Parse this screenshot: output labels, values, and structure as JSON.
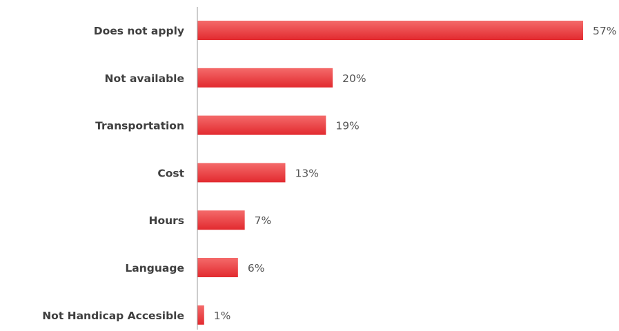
{
  "chart_data": {
    "type": "bar",
    "orientation": "horizontal",
    "categories": [
      "Does not apply",
      "Not available",
      "Transportation",
      "Cost",
      "Hours",
      "Language",
      "Not Handicap Accesible"
    ],
    "values": [
      57,
      20,
      19,
      13,
      7,
      6,
      1
    ],
    "value_labels": [
      "57%",
      "20%",
      "19%",
      "13%",
      "7%",
      "6%",
      "1%"
    ],
    "unit": "%",
    "xlim": [
      0,
      57
    ],
    "grid": false,
    "legend": "none",
    "colors": {
      "bar_top": "#f46a6a",
      "bar_bottom": "#e22a2f",
      "axis": "#9a9a9a",
      "category_text": "#3f3f3f",
      "value_text": "#555555"
    }
  }
}
